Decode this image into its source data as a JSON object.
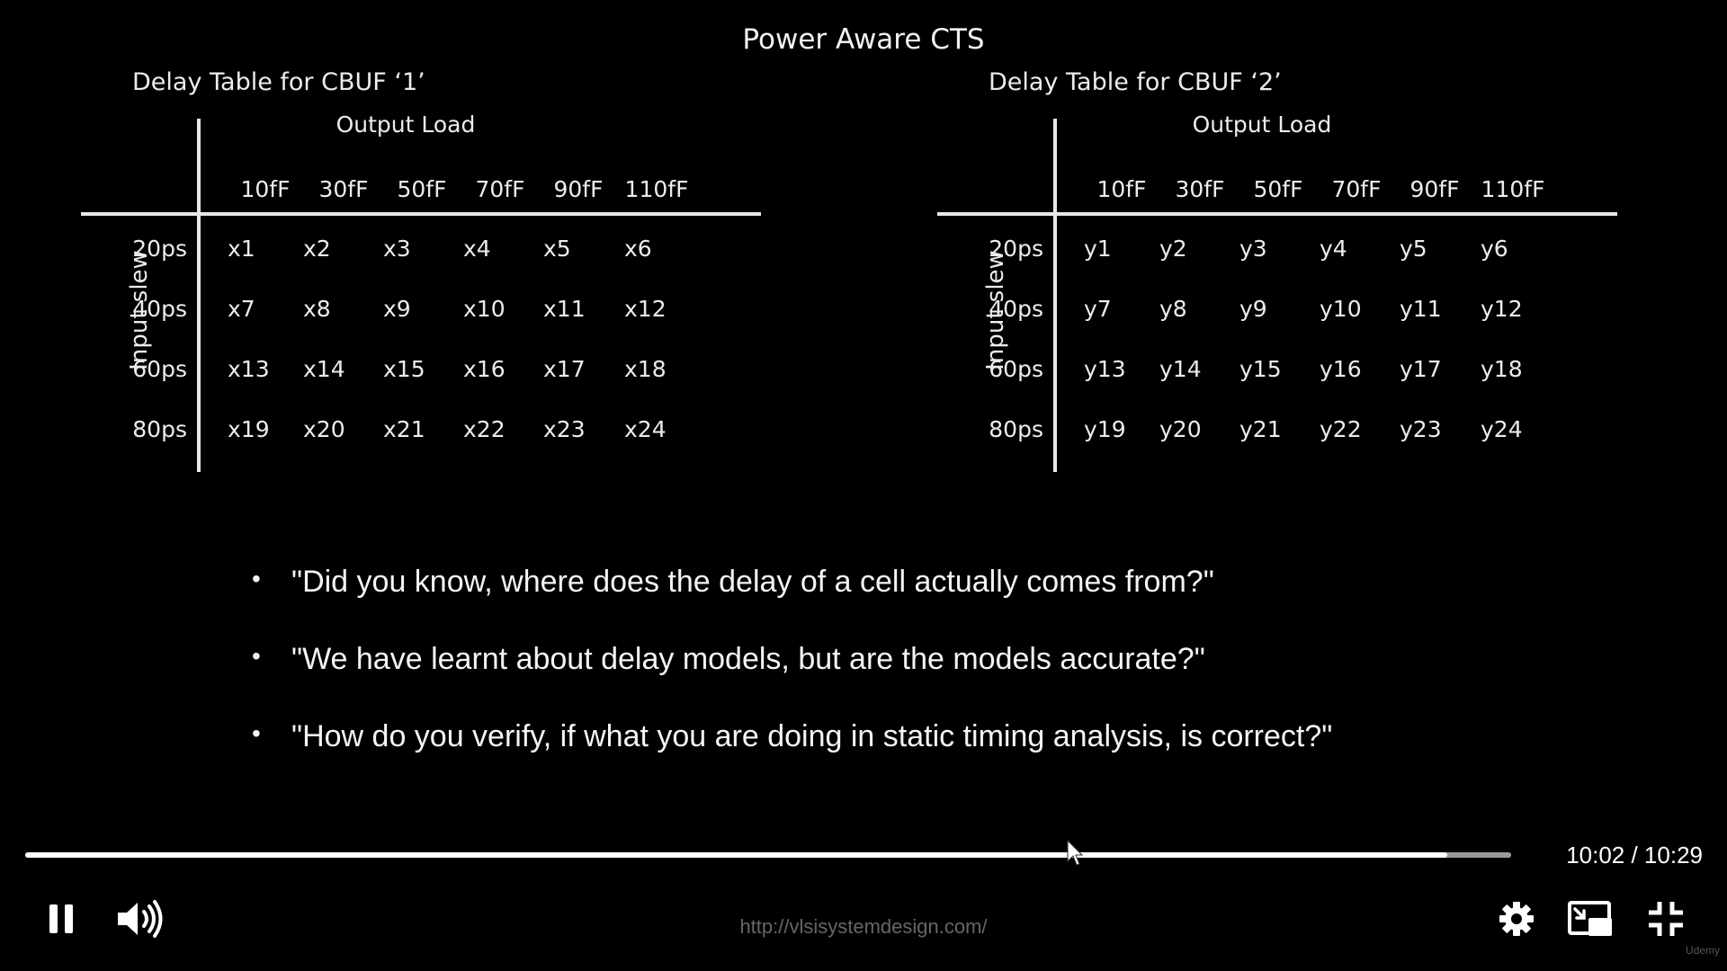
{
  "slide": {
    "title": "Power Aware CTS",
    "tables": [
      {
        "title": "Delay Table for CBUF ‘1’",
        "col_axis_label": "Output Load",
        "row_axis_label": "Input slew",
        "columns": [
          "10fF",
          "30fF",
          "50fF",
          "70fF",
          "90fF",
          "110fF"
        ],
        "rows": [
          "20ps",
          "40ps",
          "60ps",
          "80ps"
        ],
        "cells": [
          [
            "x1",
            "x2",
            "x3",
            "x4",
            "x5",
            "x6"
          ],
          [
            "x7",
            "x8",
            "x9",
            "x10",
            "x11",
            "x12"
          ],
          [
            "x13",
            "x14",
            "x15",
            "x16",
            "x17",
            "x18"
          ],
          [
            "x19",
            "x20",
            "x21",
            "x22",
            "x23",
            "x24"
          ]
        ]
      },
      {
        "title": "Delay Table for CBUF ‘2’",
        "col_axis_label": "Output Load",
        "row_axis_label": "Input slew",
        "columns": [
          "10fF",
          "30fF",
          "50fF",
          "70fF",
          "90fF",
          "110fF"
        ],
        "rows": [
          "20ps",
          "40ps",
          "60ps",
          "80ps"
        ],
        "cells": [
          [
            "y1",
            "y2",
            "y3",
            "y4",
            "y5",
            "y6"
          ],
          [
            "y7",
            "y8",
            "y9",
            "y10",
            "y11",
            "y12"
          ],
          [
            "y13",
            "y14",
            "y15",
            "y16",
            "y17",
            "y18"
          ],
          [
            "y19",
            "y20",
            "y21",
            "y22",
            "y23",
            "y24"
          ]
        ]
      }
    ],
    "bullets": [
      "\"Did you know, where does the delay of a cell actually comes from?\"",
      "\"We have learnt about delay models, but are the models accurate?\"",
      "\"How do you verify, if what you are doing in static timing analysis, is correct?\""
    ],
    "watermark_url": "http://vlsisystemdesign.com/"
  },
  "player": {
    "current_time": "10:02",
    "duration": "10:29",
    "time_display": "10:02 / 10:29",
    "played_fraction": 0.957,
    "buffered_fraction": 1.0,
    "icons": {
      "play_pause": "pause-icon",
      "volume": "volume-icon",
      "settings": "gear-icon",
      "miniplayer": "picture-in-picture-icon",
      "fullscreen": "exit-fullscreen-icon"
    },
    "brand": "Udemy"
  }
}
